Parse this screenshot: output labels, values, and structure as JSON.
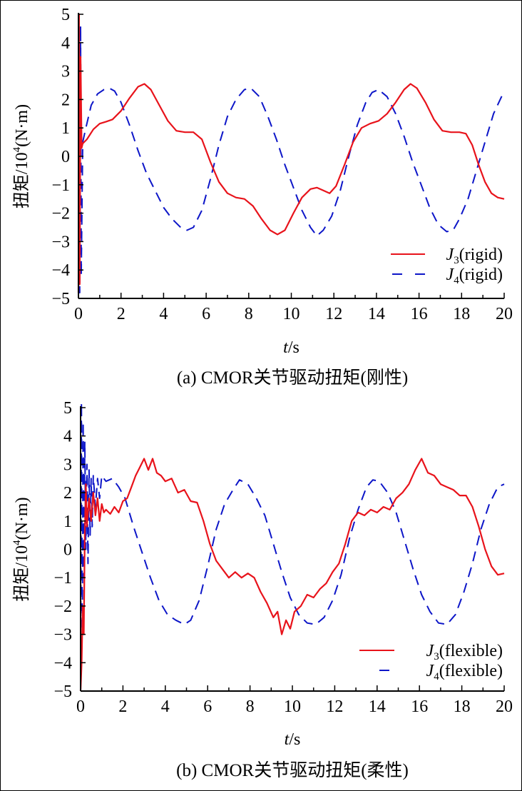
{
  "chart_data": [
    {
      "type": "line",
      "panel": "a",
      "title": "",
      "caption": "(a) CMOR关节驱动扭矩(刚性)",
      "xlabel_italic": "t",
      "xlabel_rest": "/s",
      "ylabel": "扭矩/10",
      "ylabel_sup": "4",
      "ylabel_unit": "(N·m)",
      "xlim": [
        0,
        20
      ],
      "ylim": [
        -5,
        5
      ],
      "x_ticks": [
        0,
        2,
        4,
        6,
        8,
        10,
        12,
        14,
        16,
        18,
        20
      ],
      "y_ticks": [
        -5,
        -4,
        -3,
        -2,
        -1,
        0,
        1,
        2,
        3,
        4,
        5
      ],
      "x_tick_labels": [
        "0",
        "2",
        "4",
        "6",
        "8",
        "10",
        "12",
        "14",
        "16",
        "18",
        "20"
      ],
      "y_tick_labels": [
        "−5",
        "−4",
        "−3",
        "−2",
        "−1",
        "0",
        "1",
        "2",
        "3",
        "4",
        "5"
      ],
      "grid": false,
      "legend_position": "bottom-right",
      "series": [
        {
          "name": "J3(rigid)",
          "label_main": "J",
          "label_sub": "3",
          "label_tail": "(rigid)",
          "color": "#e8131b",
          "style": "solid",
          "x": [
            0,
            0.03,
            0.06,
            0.1,
            0.15,
            0.2,
            0.4,
            0.7,
            1.0,
            1.3,
            1.6,
            2.0,
            2.4,
            2.8,
            3.1,
            3.4,
            3.8,
            4.2,
            4.6,
            5.0,
            5.4,
            5.8,
            6.2,
            6.6,
            7.0,
            7.4,
            7.8,
            8.2,
            8.6,
            9.0,
            9.35,
            9.7,
            10.1,
            10.5,
            10.9,
            11.2,
            11.5,
            11.8,
            12.1,
            12.5,
            12.9,
            13.3,
            13.7,
            14.1,
            14.5,
            14.9,
            15.3,
            15.6,
            15.9,
            16.3,
            16.7,
            17.1,
            17.5,
            17.9,
            18.2,
            18.5,
            18.8,
            19.1,
            19.4,
            19.7,
            20.0
          ],
          "y": [
            -4.8,
            5.0,
            -4.5,
            3.5,
            0.3,
            0.45,
            0.6,
            0.95,
            1.15,
            1.22,
            1.3,
            1.6,
            2.05,
            2.45,
            2.55,
            2.35,
            1.8,
            1.25,
            0.9,
            0.85,
            0.85,
            0.6,
            -0.2,
            -0.9,
            -1.3,
            -1.45,
            -1.5,
            -1.75,
            -2.2,
            -2.6,
            -2.75,
            -2.6,
            -2.0,
            -1.45,
            -1.15,
            -1.1,
            -1.2,
            -1.3,
            -1.05,
            -0.3,
            0.5,
            1.0,
            1.15,
            1.25,
            1.5,
            1.9,
            2.35,
            2.55,
            2.4,
            1.9,
            1.3,
            0.9,
            0.85,
            0.85,
            0.8,
            0.4,
            -0.3,
            -0.9,
            -1.3,
            -1.45,
            -1.5
          ]
        },
        {
          "name": "J4(rigid)",
          "label_main": "J",
          "label_sub": "4",
          "label_tail": "(rigid)",
          "color": "#0d16c8",
          "style": "dashed",
          "x": [
            0,
            0.03,
            0.06,
            0.1,
            0.13,
            0.2,
            0.35,
            0.6,
            0.9,
            1.2,
            1.45,
            1.7,
            2.0,
            2.4,
            2.8,
            3.2,
            3.6,
            4.0,
            4.4,
            4.8,
            5.1,
            5.4,
            5.8,
            6.2,
            6.6,
            7.0,
            7.4,
            7.8,
            8.1,
            8.5,
            8.9,
            9.3,
            9.7,
            10.1,
            10.5,
            10.9,
            11.2,
            11.5,
            11.9,
            12.3,
            12.7,
            13.1,
            13.5,
            13.8,
            14.1,
            14.5,
            14.9,
            15.3,
            15.7,
            16.1,
            16.5,
            16.9,
            17.3,
            17.6,
            17.9,
            18.3,
            18.7,
            19.1,
            19.5,
            20.0
          ],
          "y": [
            -4.5,
            5.0,
            -4.8,
            4.6,
            -4.2,
            0.5,
            1.0,
            1.8,
            2.2,
            2.35,
            2.4,
            2.3,
            1.9,
            1.1,
            0.2,
            -0.6,
            -1.2,
            -1.8,
            -2.2,
            -2.5,
            -2.6,
            -2.5,
            -1.9,
            -0.8,
            0.4,
            1.4,
            2.0,
            2.35,
            2.4,
            2.1,
            1.4,
            0.6,
            -0.3,
            -1.1,
            -1.9,
            -2.5,
            -2.8,
            -2.6,
            -2.1,
            -1.2,
            0.0,
            1.1,
            1.9,
            2.25,
            2.35,
            2.1,
            1.5,
            0.7,
            -0.2,
            -1.0,
            -1.8,
            -2.4,
            -2.65,
            -2.6,
            -2.2,
            -1.5,
            -0.5,
            0.5,
            1.5,
            2.3
          ]
        }
      ]
    },
    {
      "type": "line",
      "panel": "b",
      "title": "",
      "caption": "(b) CMOR关节驱动扭矩(柔性)",
      "xlabel_italic": "t",
      "xlabel_rest": "/s",
      "ylabel": "扭矩/10",
      "ylabel_sup": "4",
      "ylabel_unit": "(N·m)",
      "xlim": [
        0,
        20
      ],
      "ylim": [
        -5,
        5
      ],
      "x_ticks": [
        0,
        2,
        4,
        6,
        8,
        10,
        12,
        14,
        16,
        18,
        20
      ],
      "y_ticks": [
        -5,
        -4,
        -3,
        -2,
        -1,
        0,
        1,
        2,
        3,
        4,
        5
      ],
      "x_tick_labels": [
        "0",
        "2",
        "4",
        "6",
        "8",
        "10",
        "12",
        "14",
        "16",
        "18",
        "20"
      ],
      "y_tick_labels": [
        "−5",
        "−4",
        "−3",
        "−2",
        "−1",
        "0",
        "1",
        "2",
        "3",
        "4",
        "5"
      ],
      "grid": false,
      "legend_position": "bottom-right",
      "series": [
        {
          "name": "J3(flexible)",
          "label_main": "J",
          "label_sub": "3",
          "label_tail": "(flexible)",
          "color": "#e8131b",
          "style": "solid",
          "x": [
            0,
            0.05,
            0.1,
            0.15,
            0.2,
            0.25,
            0.3,
            0.4,
            0.5,
            0.6,
            0.7,
            0.8,
            0.9,
            1.0,
            1.1,
            1.2,
            1.4,
            1.6,
            1.8,
            2.0,
            2.2,
            2.4,
            2.6,
            2.8,
            3.0,
            3.2,
            3.4,
            3.6,
            3.8,
            4.0,
            4.3,
            4.6,
            4.9,
            5.2,
            5.5,
            5.8,
            6.1,
            6.4,
            6.7,
            7.0,
            7.3,
            7.6,
            7.9,
            8.2,
            8.5,
            8.8,
            9.1,
            9.3,
            9.5,
            9.7,
            9.9,
            10.1,
            10.4,
            10.7,
            11.0,
            11.3,
            11.6,
            11.9,
            12.2,
            12.5,
            12.8,
            13.1,
            13.4,
            13.7,
            14.0,
            14.3,
            14.6,
            14.9,
            15.2,
            15.5,
            15.8,
            16.1,
            16.4,
            16.7,
            17.0,
            17.3,
            17.6,
            17.9,
            18.2,
            18.5,
            18.8,
            19.1,
            19.4,
            19.7,
            20.0
          ],
          "y": [
            -5.0,
            -4.0,
            -2.0,
            -3.0,
            0.5,
            2.3,
            0.8,
            1.8,
            1.0,
            2.0,
            1.2,
            1.8,
            1.0,
            1.6,
            1.3,
            1.4,
            1.25,
            1.5,
            1.3,
            1.7,
            1.8,
            2.2,
            2.6,
            2.9,
            3.2,
            2.8,
            3.2,
            2.7,
            2.6,
            2.4,
            2.5,
            2.0,
            2.1,
            1.7,
            1.65,
            1.0,
            0.2,
            -0.4,
            -0.7,
            -1.0,
            -0.8,
            -1.0,
            -0.85,
            -1.0,
            -1.5,
            -1.9,
            -2.4,
            -2.2,
            -3.0,
            -2.5,
            -2.8,
            -2.2,
            -2.0,
            -1.6,
            -1.7,
            -1.4,
            -1.2,
            -0.8,
            -0.5,
            0.2,
            1.0,
            1.3,
            1.2,
            1.4,
            1.3,
            1.5,
            1.4,
            1.8,
            2.0,
            2.3,
            2.8,
            3.2,
            2.7,
            2.6,
            2.3,
            2.2,
            2.1,
            1.9,
            1.9,
            1.5,
            0.8,
            0.0,
            -0.6,
            -0.9,
            -0.85
          ]
        },
        {
          "name": "J4(flexible)",
          "label_main": "J",
          "label_sub": "4",
          "label_tail": "(flexible)",
          "color": "#0d16c8",
          "style": "dashed",
          "x": [
            0,
            0.04,
            0.08,
            0.12,
            0.16,
            0.2,
            0.25,
            0.3,
            0.35,
            0.4,
            0.45,
            0.5,
            0.55,
            0.6,
            0.7,
            0.8,
            0.9,
            1.0,
            1.2,
            1.5,
            1.8,
            2.1,
            2.5,
            2.9,
            3.3,
            3.7,
            4.1,
            4.5,
            4.9,
            5.2,
            5.6,
            6.0,
            6.4,
            6.8,
            7.2,
            7.5,
            7.9,
            8.3,
            8.7,
            9.1,
            9.5,
            9.9,
            10.3,
            10.7,
            11.1,
            11.5,
            11.9,
            12.3,
            12.7,
            13.1,
            13.5,
            13.8,
            14.1,
            14.5,
            14.9,
            15.3,
            15.7,
            16.1,
            16.5,
            16.9,
            17.3,
            17.7,
            18.1,
            18.5,
            18.9,
            19.3,
            19.7,
            20.0
          ],
          "y": [
            -4.5,
            5.2,
            -3.0,
            4.5,
            -1.0,
            3.8,
            0.0,
            3.0,
            -0.5,
            2.8,
            0.5,
            2.5,
            0.8,
            2.6,
            1.5,
            2.5,
            1.8,
            2.6,
            2.4,
            2.5,
            2.2,
            1.8,
            0.8,
            -0.1,
            -1.0,
            -1.8,
            -2.3,
            -2.5,
            -2.65,
            -2.5,
            -1.8,
            -0.6,
            0.7,
            1.6,
            2.1,
            2.45,
            2.3,
            1.8,
            1.2,
            0.2,
            -0.8,
            -1.7,
            -2.3,
            -2.6,
            -2.65,
            -2.4,
            -1.8,
            -0.9,
            0.4,
            1.4,
            2.2,
            2.45,
            2.4,
            2.0,
            1.3,
            0.3,
            -0.7,
            -1.6,
            -2.2,
            -2.6,
            -2.65,
            -2.3,
            -1.5,
            -0.5,
            0.7,
            1.6,
            2.2,
            2.3
          ]
        }
      ]
    }
  ]
}
